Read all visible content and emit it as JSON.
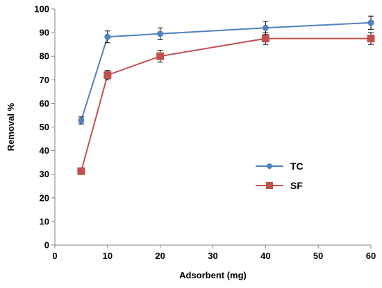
{
  "chart_data": {
    "type": "line",
    "title": "",
    "xlabel": "Adsorbent (mg)",
    "ylabel": "Removal %",
    "xlim": [
      0,
      60
    ],
    "ylim": [
      0,
      100
    ],
    "xticks": [
      0,
      10,
      20,
      30,
      40,
      50,
      60
    ],
    "yticks": [
      0,
      10,
      20,
      30,
      40,
      50,
      60,
      70,
      80,
      90,
      100
    ],
    "grid": false,
    "legend_position": "center-right",
    "series": [
      {
        "name": "TC",
        "color": "#4F81BD",
        "marker": "circle",
        "x": [
          5,
          10,
          20,
          40,
          60
        ],
        "y": [
          52.8,
          88.2,
          89.5,
          92,
          94.2
        ],
        "error": [
          1.5,
          2.5,
          2.5,
          2.8,
          2.8
        ]
      },
      {
        "name": "SF",
        "color": "#C0504D",
        "marker": "square",
        "x": [
          5,
          10,
          20,
          40,
          60
        ],
        "y": [
          31.3,
          72,
          80,
          87.5,
          87.5
        ],
        "error": [
          0,
          2,
          2.5,
          2.5,
          2.5
        ]
      }
    ]
  }
}
